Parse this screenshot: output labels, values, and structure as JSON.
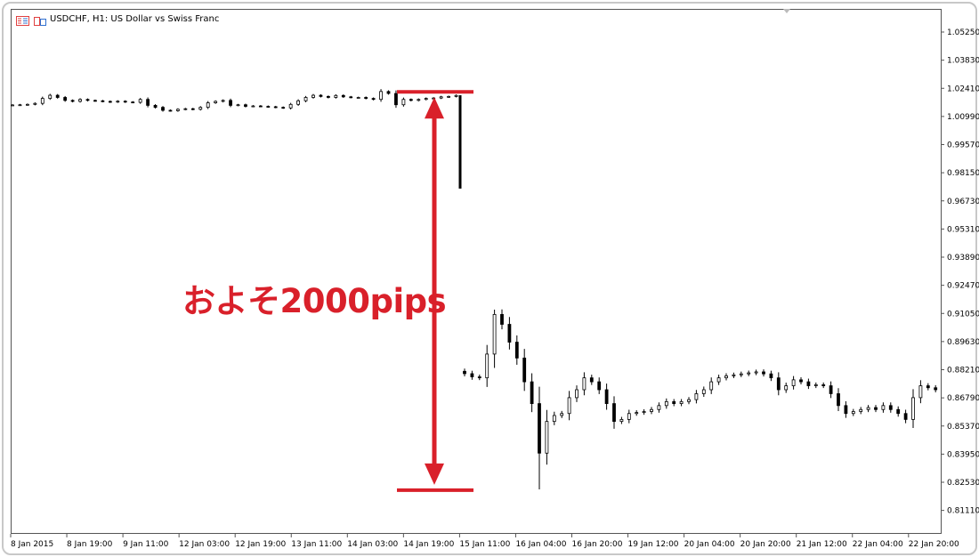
{
  "header": {
    "title": "USDCHF, H1:  US Dollar vs Swiss Franc",
    "icons": [
      "trade-list-icon",
      "one-click-trading-icon"
    ]
  },
  "annotation": {
    "text": "およそ2000pips",
    "upper_level": 1.0223,
    "lower_level": 0.8213,
    "color": "#d9202a"
  },
  "chart_data": {
    "type": "candlestick",
    "title": "USDCHF, H1:  US Dollar vs Swiss Franc",
    "ylim": [
      0.805,
      1.066
    ],
    "y_ticks": [
      "1.05250",
      "1.03830",
      "1.02410",
      "1.00990",
      "0.99570",
      "0.98150",
      "0.96730",
      "0.95310",
      "0.93890",
      "0.92470",
      "0.91050",
      "0.89630",
      "0.88210",
      "0.86790",
      "0.85370",
      "0.83950",
      "0.82530",
      "0.81110"
    ],
    "x_ticks": [
      "8 Jan 2015",
      "8 Jan 19:00",
      "9 Jan 11:00",
      "12 Jan 03:00",
      "12 Jan 19:00",
      "13 Jan 11:00",
      "14 Jan 03:00",
      "14 Jan 19:00",
      "15 Jan 11:00",
      "16 Jan 04:00",
      "16 Jan 20:00",
      "19 Jan 12:00",
      "20 Jan 04:00",
      "20 Jan 20:00",
      "21 Jan 12:00",
      "22 Jan 04:00",
      "22 Jan 20:00"
    ],
    "pre_closes": [
      1.0157,
      1.0158,
      1.016,
      1.0165,
      1.019,
      1.0206,
      1.0195,
      1.018,
      1.0175,
      1.0185,
      1.018,
      1.0178,
      1.0175,
      1.0172,
      1.0176,
      1.0172,
      1.017,
      1.0185,
      1.0155,
      1.0145,
      1.013,
      1.0128,
      1.0135,
      1.0138,
      1.0135,
      1.0145,
      1.0168,
      1.0175,
      1.018,
      1.0155,
      1.0158,
      1.015,
      1.0152,
      1.015,
      1.0148,
      1.0145,
      1.0142,
      1.016,
      1.0178,
      1.0195,
      1.0206,
      1.02,
      1.0195,
      1.0205,
      1.0198,
      1.0195,
      1.0195,
      1.019,
      1.0185,
      1.0225,
      1.0215,
      1.0158,
      1.0185,
      1.018,
      1.0185,
      1.019,
      1.0192,
      1.0198,
      1.02,
      1.0205
    ],
    "snb_candle": {
      "open": 1.0206,
      "high": 1.0212,
      "low": 0.9735,
      "close": 0.9735
    },
    "post_closes": [
      0.8801,
      0.8785,
      0.878,
      0.89,
      0.91,
      0.905,
      0.896,
      0.888,
      0.876,
      0.865,
      0.84,
      0.856,
      0.859,
      0.86,
      0.868,
      0.872,
      0.878,
      0.876,
      0.872,
      0.865,
      0.856,
      0.857,
      0.86,
      0.8605,
      0.861,
      0.862,
      0.864,
      0.866,
      0.865,
      0.866,
      0.867,
      0.87,
      0.872,
      0.876,
      0.878,
      0.879,
      0.8795,
      0.88,
      0.8805,
      0.881,
      0.88,
      0.878,
      0.872,
      0.874,
      0.877,
      0.876,
      0.874,
      0.8745,
      0.874,
      0.87,
      0.864,
      0.86,
      0.861,
      0.862,
      0.863,
      0.862,
      0.864,
      0.862,
      0.86,
      0.857,
      0.868,
      0.874,
      0.873,
      0.872
    ],
    "post_extremes": {
      "high": 0.9124,
      "low": 0.8217
    }
  }
}
